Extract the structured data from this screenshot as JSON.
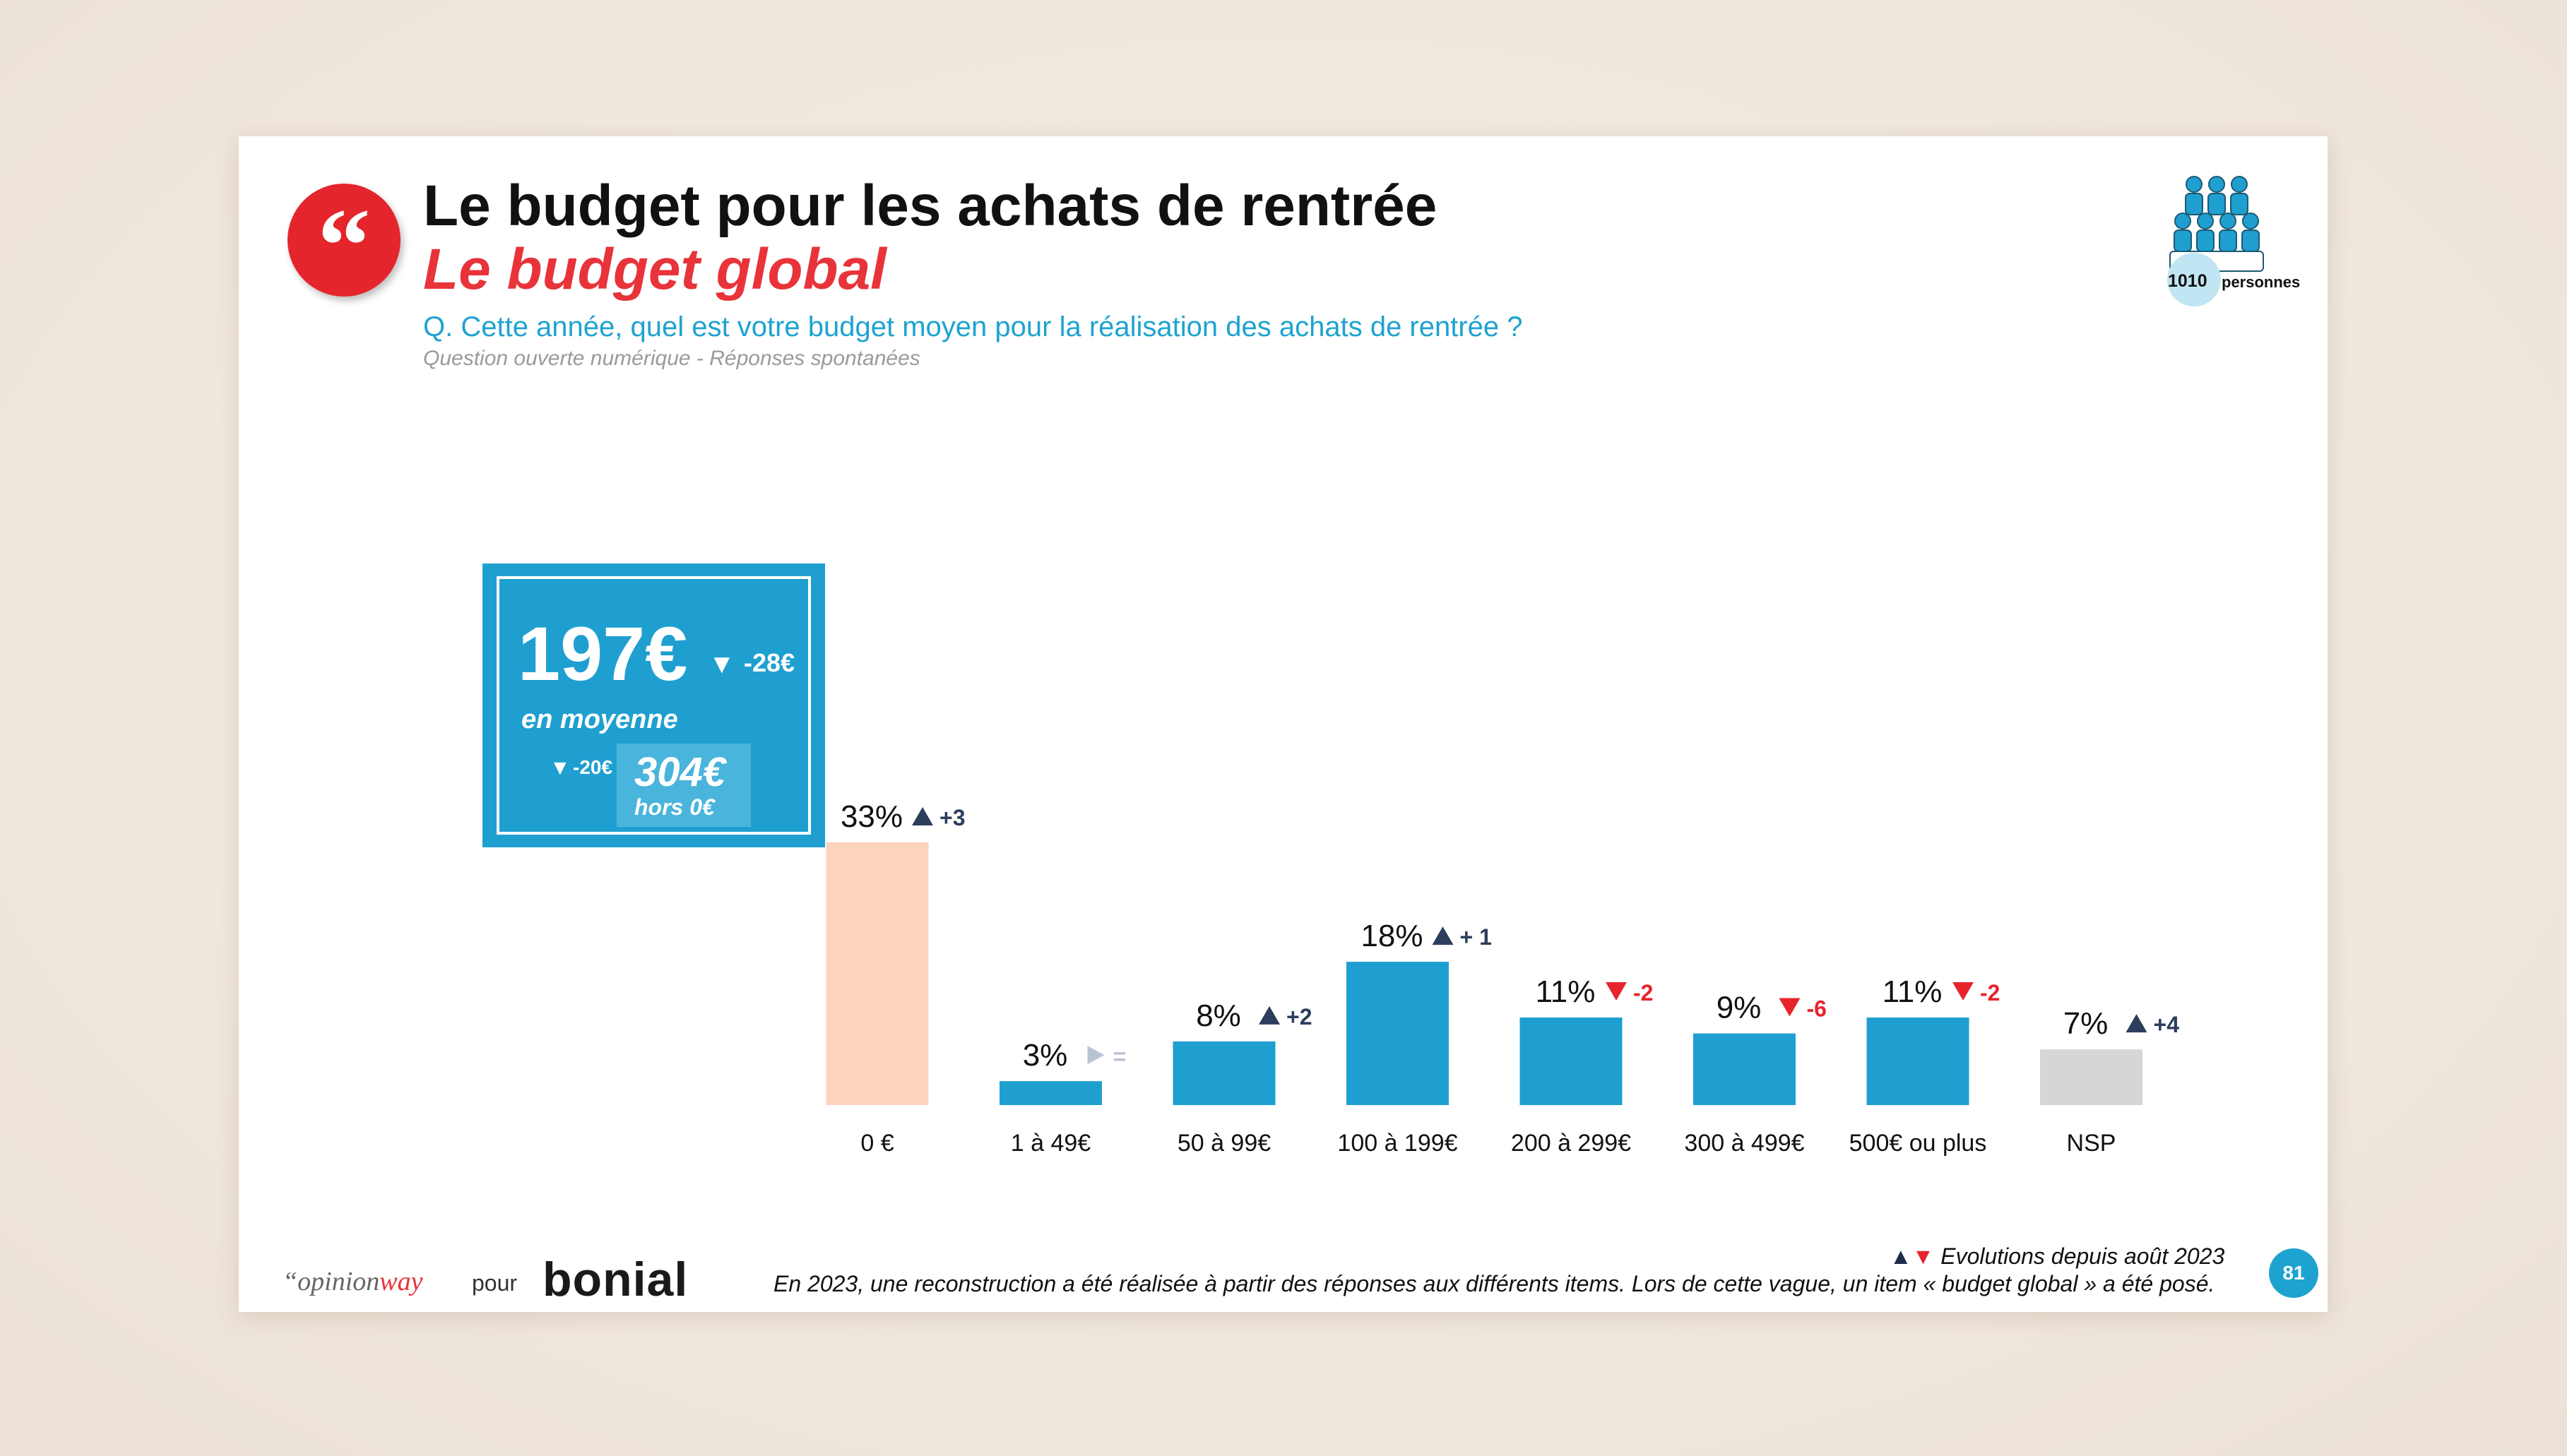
{
  "header": {
    "title": "Le budget pour les achats de rentrée",
    "subtitle": "Le budget global",
    "question": "Q. Cette année, quel est votre budget moyen pour la réalisation des achats de rentrée ?",
    "question_note": "Question ouverte numérique - Réponses spontanées",
    "quote_icon": "quote-icon"
  },
  "sample": {
    "count": "1010",
    "label": "personnes",
    "icon": "people-group-icon"
  },
  "kpi": {
    "value": "197€",
    "delta_arrow": "▼",
    "delta": "-28€",
    "label": "en moyenne",
    "sub_arrow": "▼",
    "sub_delta": "-20€",
    "sub_value": "304€",
    "sub_label": "hors 0€"
  },
  "chart_data": {
    "type": "bar",
    "categories": [
      "0 €",
      "1 à 49€",
      "50 à 99€",
      "100 à 199€",
      "200 à 299€",
      "300 à 499€",
      "500€ ou plus",
      "NSP"
    ],
    "values": [
      33,
      3,
      8,
      18,
      11,
      9,
      11,
      7
    ],
    "value_labels": [
      "33%",
      "3%",
      "8%",
      "18%",
      "11%",
      "9%",
      "11%",
      "7%"
    ],
    "evolutions": [
      {
        "direction": "up",
        "text": "+3"
      },
      {
        "direction": "flat",
        "text": "="
      },
      {
        "direction": "up",
        "text": "+2"
      },
      {
        "direction": "up",
        "text": "+ 1"
      },
      {
        "direction": "down",
        "text": "-2"
      },
      {
        "direction": "down",
        "text": "-6"
      },
      {
        "direction": "down",
        "text": "-2"
      },
      {
        "direction": "up",
        "text": "+4"
      }
    ],
    "bar_colors": [
      "#fdd3bd",
      "#1f9fd0",
      "#1f9fd0",
      "#1f9fd0",
      "#1f9fd0",
      "#1f9fd0",
      "#1f9fd0",
      "#d6d6d8"
    ],
    "ylim": [
      0,
      33
    ],
    "colors": {
      "up": "#2c3e5c",
      "down": "#e8242b",
      "flat": "#b9c3d6",
      "label": "#111111"
    }
  },
  "footer": {
    "brand_opinion_prefix": "“opinion",
    "brand_opinion_suffix": "way",
    "pour": "pour",
    "brand_bonial": "bonial",
    "legend_up": "▲",
    "legend_down": "▼",
    "legend_text": "Evolutions depuis août 2023",
    "footnote": "En 2023, une reconstruction a été réalisée à partir des réponses aux différents items. Lors de cette vague, un item « budget global » a été posé.",
    "page": "81"
  }
}
